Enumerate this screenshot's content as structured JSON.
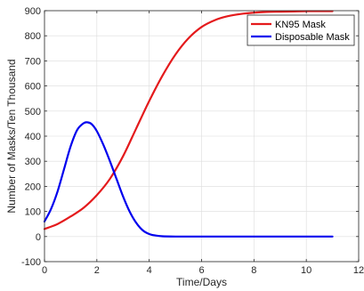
{
  "chart_data": {
    "type": "line",
    "xlabel": "Time/Days",
    "ylabel": "Number of Masks/Ten Thousand",
    "xlim": [
      0,
      12
    ],
    "ylim": [
      -100,
      900
    ],
    "xticks": [
      0,
      2,
      4,
      6,
      8,
      10,
      12
    ],
    "yticks": [
      -100,
      0,
      100,
      200,
      300,
      400,
      500,
      600,
      700,
      800,
      900
    ],
    "grid": true,
    "legend_position": "top-right",
    "series": [
      {
        "name": "KN95 Mask",
        "color": "#e41a1c",
        "x": [
          0,
          0.5,
          1,
          1.5,
          2,
          2.5,
          3,
          3.5,
          4,
          4.5,
          5,
          5.5,
          6,
          6.5,
          7,
          7.5,
          8,
          8.5,
          9,
          9.5,
          10,
          10.5,
          11
        ],
        "y": [
          30,
          50,
          80,
          115,
          165,
          230,
          320,
          430,
          540,
          640,
          725,
          790,
          835,
          862,
          878,
          887,
          892,
          895,
          896,
          897,
          898,
          898,
          898
        ]
      },
      {
        "name": "Disposable Mask",
        "color": "#0000ee",
        "x": [
          0,
          0.25,
          0.5,
          0.75,
          1,
          1.25,
          1.5,
          1.65,
          1.8,
          2,
          2.25,
          2.5,
          2.75,
          3,
          3.25,
          3.5,
          3.75,
          4,
          4.25,
          4.5,
          5,
          6,
          7,
          8,
          9,
          10,
          11
        ],
        "y": [
          60,
          110,
          180,
          270,
          360,
          425,
          452,
          455,
          448,
          420,
          365,
          300,
          230,
          160,
          100,
          55,
          25,
          10,
          4,
          1,
          0,
          0,
          0,
          0,
          0,
          0,
          0
        ]
      }
    ]
  }
}
